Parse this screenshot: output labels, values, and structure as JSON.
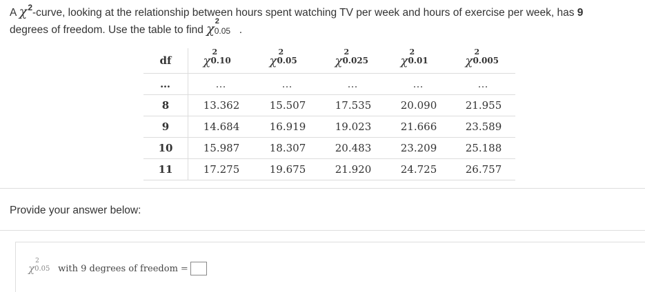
{
  "question": {
    "part1": "A ",
    "chi": "χ",
    "sup": "2",
    "part2": "-curve, looking at the relationship between hours spent watching TV per week and hours of exercise per week, has ",
    "df_value": "9",
    "part3": "degrees of freedom. Use the table to find ",
    "target_sup": "2",
    "target_sub": "0.05",
    "end": "."
  },
  "table": {
    "df_header": "df",
    "columns": [
      {
        "sup": "2",
        "sub": "0.10"
      },
      {
        "sup": "2",
        "sub": "0.05"
      },
      {
        "sup": "2",
        "sub": "0.025"
      },
      {
        "sup": "2",
        "sub": "0.01"
      },
      {
        "sup": "2",
        "sub": "0.005"
      }
    ],
    "ellipsis_df": "…",
    "ellipsis_cell": "…",
    "rows": [
      {
        "df": "8",
        "values": [
          "13.362",
          "15.507",
          "17.535",
          "20.090",
          "21.955"
        ]
      },
      {
        "df": "9",
        "values": [
          "14.684",
          "16.919",
          "19.023",
          "21.666",
          "23.589"
        ]
      },
      {
        "df": "10",
        "values": [
          "15.987",
          "18.307",
          "20.483",
          "23.209",
          "25.188"
        ]
      },
      {
        "df": "11",
        "values": [
          "17.275",
          "19.675",
          "21.920",
          "24.725",
          "26.757"
        ]
      }
    ]
  },
  "prompt": "Provide your answer below:",
  "answer": {
    "chi": "χ",
    "sup": "2",
    "sub": "0.05",
    "text": "with 9 degrees of freedom",
    "equals": "=",
    "value": ""
  }
}
